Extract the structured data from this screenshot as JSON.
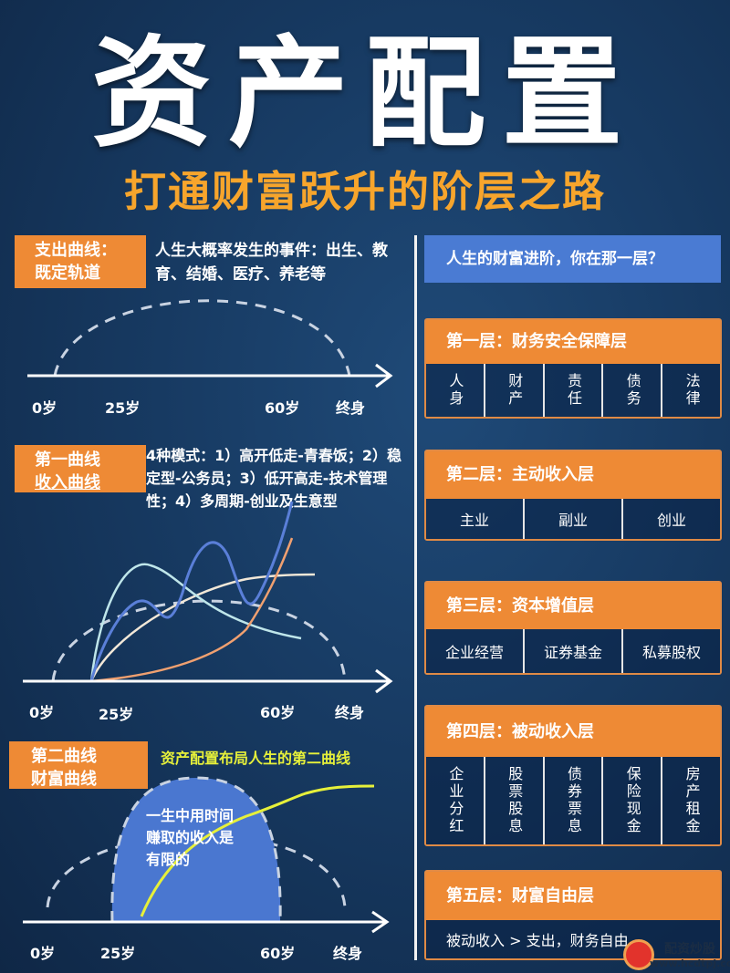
{
  "title": "资产配置",
  "subtitle": "打通财富跃升的阶层之路",
  "colors": {
    "orange": "#ee8a35",
    "subtitle": "#f7a52c",
    "blue": "#4a7bd3",
    "yellow": "#e6f03a",
    "background": "#173a62"
  },
  "left": {
    "s1": {
      "box": [
        "支出曲线：",
        "既定轨道"
      ],
      "desc": "人生大概率发生的事件：出生、教育、结婚、医疗、养老等"
    },
    "s2": {
      "box": [
        "第一曲线",
        "收入曲线"
      ],
      "desc": "4种模式：1）高开低走-青春饭；2）稳定型-公务员；3）低开高走-技术管理性；4）多周期-创业及生意型"
    },
    "s3": {
      "box": [
        "第二曲线",
        "财富曲线"
      ],
      "headline": "资产配置布局人生的第二曲线",
      "dome": "一生中用时间赚取的收入是有限的"
    },
    "axis": [
      "0岁",
      "25岁",
      "60岁",
      "终身"
    ]
  },
  "right": {
    "question": "人生的财富进阶，你在那一层？",
    "layers": [
      {
        "title": "第一层：财务安全保障层",
        "items": [
          "人身",
          "财产",
          "责任",
          "债务",
          "法律"
        ]
      },
      {
        "title": "第二层：主动收入层",
        "items": [
          "主业",
          "副业",
          "创业"
        ]
      },
      {
        "title": "第三层：资本增值层",
        "items": [
          "企业经营",
          "证券基金",
          "私募股权"
        ]
      },
      {
        "title": "第四层：被动收入层",
        "items": [
          "企业分红",
          "股票股息",
          "债券票息",
          "保险现金",
          "房产租金"
        ]
      },
      {
        "title": "第五层：财富自由层",
        "items": [
          "被动收入 > 支出，财务自由"
        ]
      }
    ]
  },
  "watermark": {
    "text": "配资炒股",
    "url": "www.hcdtpj.com"
  }
}
